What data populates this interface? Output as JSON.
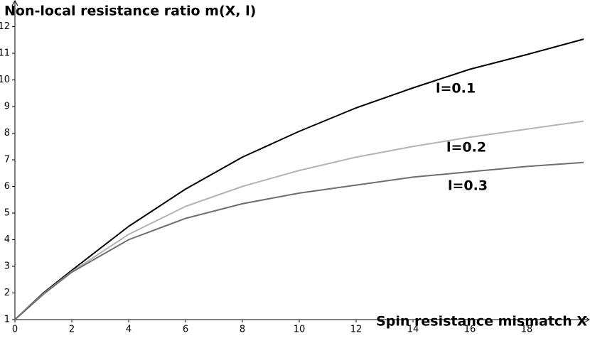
{
  "chart_data": {
    "type": "line",
    "y_label": "Non-local resistance ratio m(X, l)",
    "x_label": "Spin resistance mismatch X",
    "x": [
      0,
      1,
      2,
      4,
      6,
      8,
      10,
      12,
      14,
      16,
      18,
      20
    ],
    "series": [
      {
        "name": "l=0.1",
        "color": "#000000",
        "values": [
          1,
          2.0,
          2.85,
          4.5,
          5.9,
          7.1,
          8.07,
          8.95,
          9.7,
          10.4,
          10.95,
          11.53
        ]
      },
      {
        "name": "l=0.2",
        "color": "#b4b4b4",
        "values": [
          1,
          1.97,
          2.8,
          4.2,
          5.25,
          6.0,
          6.6,
          7.1,
          7.5,
          7.85,
          8.15,
          8.45
        ]
      },
      {
        "name": "l=0.3",
        "color": "#6e6e6e",
        "values": [
          1,
          1.95,
          2.78,
          4.0,
          4.8,
          5.35,
          5.75,
          6.05,
          6.35,
          6.55,
          6.75,
          6.9
        ]
      }
    ],
    "xlim": [
      0,
      20.2
    ],
    "ylim": [
      1,
      13
    ],
    "xticks": [
      0,
      2,
      4,
      6,
      8,
      10,
      12,
      14,
      16,
      18
    ],
    "yticks": [
      1,
      2,
      3,
      4,
      5,
      6,
      7,
      8,
      9,
      10,
      11,
      12
    ]
  }
}
